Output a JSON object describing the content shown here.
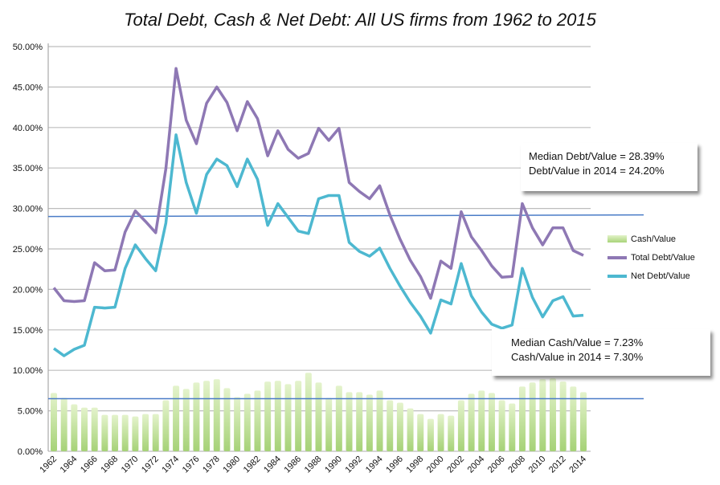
{
  "chart_data": {
    "type": "bar+line",
    "title": "Total Debt, Cash & Net Debt: All US firms from 1962 to 2015",
    "xlabel": "",
    "ylabel": "",
    "ylim": [
      0,
      50
    ],
    "y_ticks": [
      "0.00%",
      "5.00%",
      "10.00%",
      "15.00%",
      "20.00%",
      "25.00%",
      "30.00%",
      "35.00%",
      "40.00%",
      "45.00%",
      "50.00%"
    ],
    "grid": true,
    "legend_position": "right",
    "x": [
      1962,
      1963,
      1964,
      1965,
      1966,
      1967,
      1968,
      1969,
      1970,
      1971,
      1972,
      1973,
      1974,
      1975,
      1976,
      1977,
      1978,
      1979,
      1980,
      1981,
      1982,
      1983,
      1984,
      1985,
      1986,
      1987,
      1988,
      1989,
      1990,
      1991,
      1992,
      1993,
      1994,
      1995,
      1996,
      1997,
      1998,
      1999,
      2000,
      2001,
      2002,
      2003,
      2004,
      2005,
      2006,
      2007,
      2008,
      2009,
      2010,
      2011,
      2012,
      2013,
      2014
    ],
    "series": [
      {
        "name": "Cash/Value",
        "kind": "bar",
        "color": "#b5d98a",
        "values": [
          7.2,
          6.6,
          5.8,
          5.4,
          5.4,
          4.5,
          4.5,
          4.5,
          4.3,
          4.6,
          4.6,
          6.3,
          8.1,
          7.7,
          8.5,
          8.7,
          8.9,
          7.8,
          6.7,
          7.1,
          7.5,
          8.6,
          8.7,
          8.3,
          8.7,
          9.7,
          8.5,
          6.6,
          8.1,
          7.3,
          7.3,
          7.0,
          7.5,
          6.3,
          6.0,
          5.3,
          4.6,
          4.0,
          4.6,
          4.4,
          6.3,
          7.1,
          7.5,
          7.2,
          6.3,
          5.9,
          8.0,
          8.5,
          8.9,
          9.0,
          8.6,
          8.0,
          7.3
        ]
      },
      {
        "name": "Total Debt/Value",
        "kind": "line",
        "color": "#8e78b4",
        "values": [
          20.2,
          18.6,
          18.5,
          18.6,
          23.3,
          22.3,
          22.4,
          27.1,
          29.7,
          28.4,
          27.0,
          34.9,
          47.3,
          40.9,
          38.0,
          43.0,
          45.0,
          43.1,
          39.6,
          43.2,
          41.1,
          36.5,
          39.6,
          37.3,
          36.2,
          36.8,
          39.9,
          38.4,
          39.9,
          33.2,
          32.1,
          31.2,
          32.8,
          29.2,
          26.2,
          23.6,
          21.6,
          18.9,
          23.5,
          22.6,
          29.6,
          26.5,
          24.8,
          22.9,
          21.5,
          21.6,
          30.6,
          27.6,
          25.5,
          27.6,
          27.6,
          24.8,
          24.2
        ]
      },
      {
        "name": "Net Debt/Value",
        "kind": "line",
        "color": "#4db8d0",
        "values": [
          12.7,
          11.8,
          12.6,
          13.1,
          17.8,
          17.7,
          17.8,
          22.6,
          25.5,
          23.8,
          22.3,
          28.2,
          39.1,
          33.2,
          29.4,
          34.2,
          36.1,
          35.3,
          32.7,
          36.1,
          33.6,
          27.9,
          30.6,
          28.9,
          27.2,
          26.9,
          31.2,
          31.6,
          31.6,
          25.8,
          24.7,
          24.1,
          25.1,
          22.6,
          20.4,
          18.4,
          16.7,
          14.6,
          18.7,
          18.2,
          23.2,
          19.2,
          17.2,
          15.7,
          15.2,
          15.6,
          22.6,
          19.0,
          16.6,
          18.6,
          19.1,
          16.7,
          16.8
        ]
      }
    ],
    "reference_lines": [
      {
        "label": "median debt",
        "value": 29.0,
        "color": "#4a7cc7"
      },
      {
        "label": "median cash",
        "value": 6.5,
        "color": "#4a7cc7"
      }
    ],
    "annotations": [
      {
        "lines": [
          "Median Debt/Value = 28.39%",
          "Debt/Value in 2014 = 24.20%"
        ]
      },
      {
        "lines": [
          "Median Cash/Value = 7.23%",
          "Cash/Value in 2014 = 7.30%"
        ]
      }
    ]
  }
}
